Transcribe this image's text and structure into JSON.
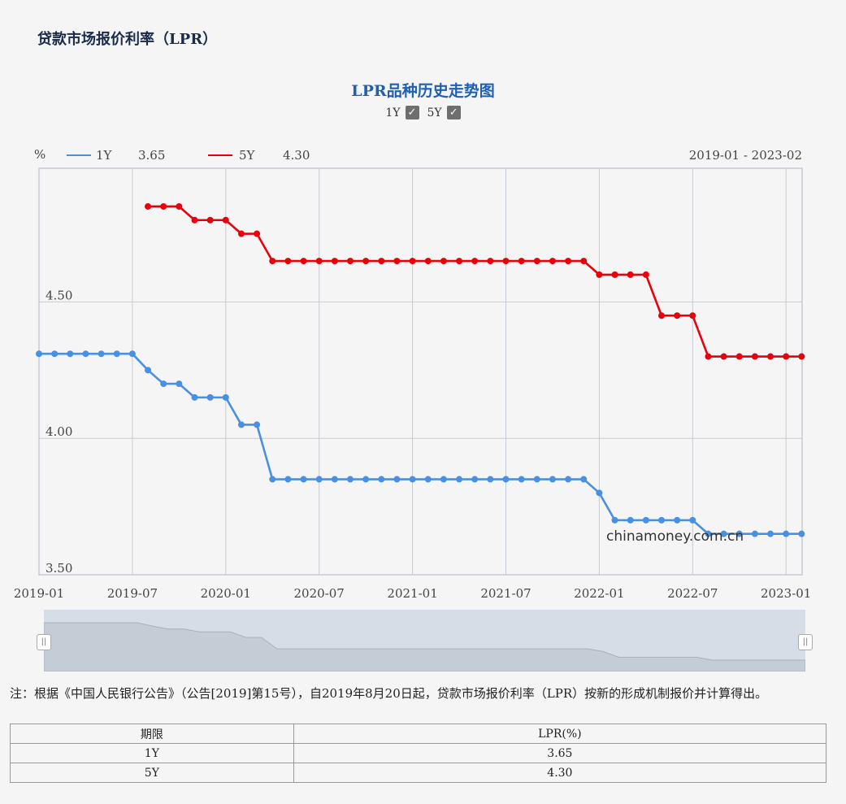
{
  "page_title": "贷款市场报价利率（LPR）",
  "toggles": [
    {
      "label": "1Y",
      "checked": true
    },
    {
      "label": "5Y",
      "checked": true
    }
  ],
  "legend": {
    "unit": "%",
    "items": [
      {
        "name": "1Y",
        "value": "3.65",
        "color": "#4a90e2"
      },
      {
        "name": "5Y",
        "value": "4.30",
        "color": "#e8000b"
      }
    ],
    "range": "2019-01 - 2023-02"
  },
  "watermark": "chinamoney.com.cn",
  "chart_data": {
    "type": "line",
    "title": "LPR品种历史走势图",
    "ylabel": "%",
    "ylim": [
      3.5,
      4.99
    ],
    "yticks": [
      "3.50",
      "4.00",
      "4.50"
    ],
    "xticks": [
      "2019-01",
      "2019-07",
      "2020-01",
      "2020-07",
      "2021-01",
      "2021-07",
      "2022-01",
      "2022-07",
      "2023-01"
    ],
    "grid": true,
    "legend_position": "top-left",
    "series": [
      {
        "name": "1Y",
        "color": "#4a90e2",
        "start": "2019-01",
        "values": [
          4.31,
          4.31,
          4.31,
          4.31,
          4.31,
          4.31,
          4.31,
          4.25,
          4.2,
          4.2,
          4.15,
          4.15,
          4.15,
          4.05,
          4.05,
          3.85,
          3.85,
          3.85,
          3.85,
          3.85,
          3.85,
          3.85,
          3.85,
          3.85,
          3.85,
          3.85,
          3.85,
          3.85,
          3.85,
          3.85,
          3.85,
          3.85,
          3.85,
          3.85,
          3.85,
          3.85,
          3.8,
          3.7,
          3.7,
          3.7,
          3.7,
          3.7,
          3.7,
          3.65,
          3.65,
          3.65,
          3.65,
          3.65,
          3.65,
          3.65
        ]
      },
      {
        "name": "5Y",
        "color": "#e8000b",
        "start": "2019-08",
        "values": [
          4.85,
          4.85,
          4.85,
          4.8,
          4.8,
          4.8,
          4.75,
          4.75,
          4.65,
          4.65,
          4.65,
          4.65,
          4.65,
          4.65,
          4.65,
          4.65,
          4.65,
          4.65,
          4.65,
          4.65,
          4.65,
          4.65,
          4.65,
          4.65,
          4.65,
          4.65,
          4.65,
          4.65,
          4.65,
          4.6,
          4.6,
          4.6,
          4.6,
          4.45,
          4.45,
          4.45,
          4.3,
          4.3,
          4.3,
          4.3,
          4.3,
          4.3,
          4.3
        ]
      }
    ]
  },
  "note": "注：根据《中国人民银行公告》（公告[2019]第15号），自2019年8月20日起，贷款市场报价利率（LPR）按新的形成机制报价并计算得出。",
  "table": {
    "headers": [
      "期限",
      "LPR(%)"
    ],
    "rows": [
      [
        "1Y",
        "3.65"
      ],
      [
        "5Y",
        "4.30"
      ]
    ]
  }
}
